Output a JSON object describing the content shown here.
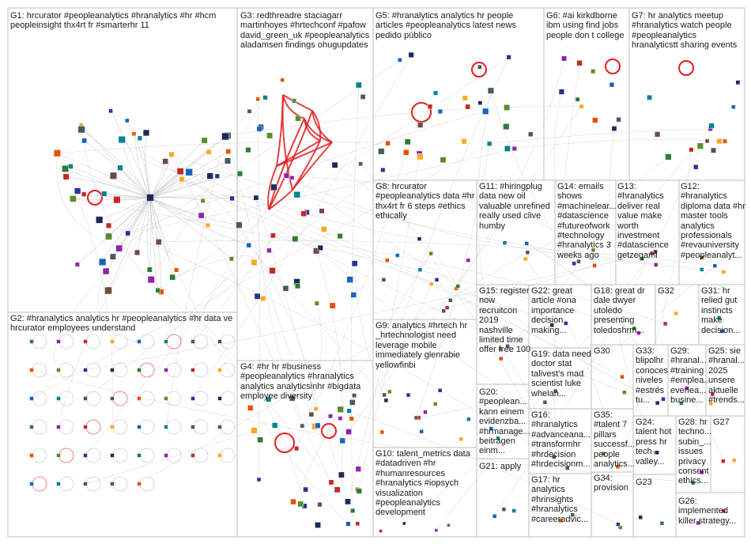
{
  "groups": [
    {
      "id": "G1",
      "label": "G1: hrcurator #peopleanalytics #hranalytics #hr #hcm peopleinsight thx4rt fr #smarterhr 11"
    },
    {
      "id": "G2",
      "label": "G2: #hranalytics analytics hr #peopleanalytics #hr data ve hrcurator employees understand"
    },
    {
      "id": "G3",
      "label": "G3: redthreadre staciagarr martinhoyes #hrtechconf #pafow david_green_uk #peopleanalytics aladamsen findings ohugupdates"
    },
    {
      "id": "G4",
      "label": "G4: #hr hr #business #peopleanalytics #hranalytics analytics analyticsinhr #bigdata employee diversity"
    },
    {
      "id": "G5",
      "label": "G5: #hranalytics analytics hr people articles #peopleanalytics latest news pedido público"
    },
    {
      "id": "G6",
      "label": "G6: #ai kirkdborne ibm using find jobs people don t college"
    },
    {
      "id": "G7",
      "label": "G7: hr analytics meetup #hranalytics watch people #peopleanalytics hranalyticstt sharing events"
    },
    {
      "id": "G8",
      "label": "G8: hrcurator #peopleanalytics data #hr thx4rt fr 6 steps #ethics ethically"
    },
    {
      "id": "G9",
      "label": "G9: analytics #hrtech hr _hrtechnologist need leverage mobile immediately glenrabie yellowfinbi"
    },
    {
      "id": "G10",
      "label": "G10: talent_metrics data #datadriven #hr #humanresources #hranalytics #iopsych visualization #peopleanalytics development"
    },
    {
      "id": "G11",
      "label": "G11: #hiringplug data new oil valuable unrefined really used clive humby"
    },
    {
      "id": "G12",
      "label": "G12: #hranalytics diploma data #hr master tools analytics professionals #revauniversity #peopleanalyt..."
    },
    {
      "id": "G13",
      "label": "G13: #hranalytics deliver real value make worth investment #datascience getzegami"
    },
    {
      "id": "G14",
      "label": "G14: emails shows #machinelear... #datascience #futureofwork #technology #hranalytics 3 weeks ago"
    },
    {
      "id": "G15",
      "label": "G15: register now recruitcon 2019 nashville limited time offer free 100"
    },
    {
      "id": "G16",
      "label": "G16: #hranalytics #advanceana... #transformhr #hrdecision #hrdecisionm..."
    },
    {
      "id": "G17",
      "label": "G17: hr analytics #hrinsights #hranalytics #careeradvic..."
    },
    {
      "id": "G18",
      "label": "G18: great dr dale dwyer utoledo presenting toledoshrm..."
    },
    {
      "id": "G19",
      "label": "G19: data need doctor stat talivest's mad scientist luke whelan..."
    },
    {
      "id": "G20",
      "label": "G20: #peoplean... kann einem evidenzba... #hrmanage... beitragen einm..."
    },
    {
      "id": "G21",
      "label": "G21: apply"
    },
    {
      "id": "G22",
      "label": "G22: great article #ona importance decision making..."
    },
    {
      "id": "G23",
      "label": "G23"
    },
    {
      "id": "G24",
      "label": "G24: talent hot press hr tech valley..."
    },
    {
      "id": "G25",
      "label": "G25: sie #hranal... 2025 unsere aktuelle #trends..."
    },
    {
      "id": "G26",
      "label": "G26: implemented killer strategy..."
    },
    {
      "id": "G27",
      "label": "G27"
    },
    {
      "id": "G28",
      "label": "G28: hr techno... subin_... issues privacy consent ethics..."
    },
    {
      "id": "G29",
      "label": "G29: #hranal... #training #emplea... everlea... busine..."
    },
    {
      "id": "G30",
      "label": "G30"
    },
    {
      "id": "G31",
      "label": "G31: hr relied gut instincts make decision..."
    },
    {
      "id": "G32",
      "label": "G32"
    },
    {
      "id": "G33",
      "label": "G33: blipolhr conoces niveles #estrés tu..."
    },
    {
      "id": "G34",
      "label": "G34: provision"
    },
    {
      "id": "G35",
      "label": "G35: #talent 7 pillars successf... people analytics..."
    }
  ],
  "colors": {
    "edge": "#b9b9b9",
    "edge_red": "#e11f1f",
    "box_border": "#bdbdbd"
  }
}
